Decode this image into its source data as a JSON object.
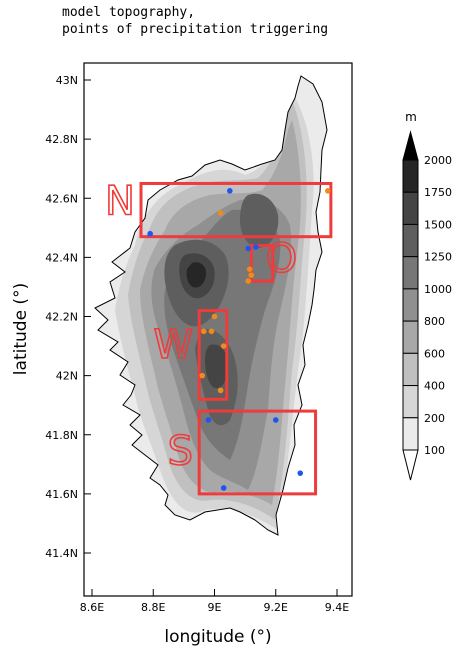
{
  "header": {
    "title_line1": "model topography,",
    "title_line2": "points of precipitation triggering"
  },
  "axes": {
    "xlabel": "longitude (°)",
    "ylabel": "latitude (°)",
    "lon_ticks": [
      {
        "value": 8.6,
        "label": "8.6E"
      },
      {
        "value": 8.8,
        "label": "8.8E"
      },
      {
        "value": 9.0,
        "label": "9E"
      },
      {
        "value": 9.2,
        "label": "9.2E"
      },
      {
        "value": 9.4,
        "label": "9.4E"
      }
    ],
    "lat_ticks": [
      {
        "value": 41.4,
        "label": "41.4N"
      },
      {
        "value": 41.6,
        "label": "41.6N"
      },
      {
        "value": 41.8,
        "label": "41.8N"
      },
      {
        "value": 42.0,
        "label": "42N"
      },
      {
        "value": 42.2,
        "label": "42.2N"
      },
      {
        "value": 42.4,
        "label": "42.4N"
      },
      {
        "value": 42.6,
        "label": "42.6N"
      },
      {
        "value": 42.8,
        "label": "42.8N"
      },
      {
        "value": 43.0,
        "label": "43N"
      }
    ],
    "lon_range": [
      8.5,
      9.6
    ],
    "lat_range": [
      41.25,
      43.1
    ]
  },
  "colorbar": {
    "unit": "m",
    "levels": [
      {
        "label": "100",
        "color": "#ffffff"
      },
      {
        "label": "200",
        "color": "#ebebeb"
      },
      {
        "label": "400",
        "color": "#d6d6d6"
      },
      {
        "label": "600",
        "color": "#c0c0c0"
      },
      {
        "label": "800",
        "color": "#a8a8a8"
      },
      {
        "label": "1000",
        "color": "#909090"
      },
      {
        "label": "1250",
        "color": "#777777"
      },
      {
        "label": "1500",
        "color": "#5e5e5e"
      },
      {
        "label": "1750",
        "color": "#444444"
      },
      {
        "label": "2000",
        "color": "#262626"
      }
    ],
    "over_color": "#000000"
  },
  "regions": [
    {
      "label": "N",
      "lon": [
        8.76,
        9.38
      ],
      "lat": [
        42.47,
        42.65
      ],
      "label_lon": 8.74,
      "label_lat": 42.545
    },
    {
      "label": "O",
      "lon": [
        9.12,
        9.19
      ],
      "lat": [
        42.32,
        42.44
      ],
      "label_lon": 9.27,
      "label_lat": 42.35
    },
    {
      "label": "W",
      "lon": [
        8.95,
        9.04
      ],
      "lat": [
        41.92,
        42.22
      ],
      "label_lon": 8.93,
      "label_lat": 42.06
    },
    {
      "label": "S",
      "lon": [
        8.95,
        9.33
      ],
      "lat": [
        41.6,
        41.88
      ],
      "label_lon": 8.93,
      "label_lat": 41.7
    }
  ],
  "points": [
    {
      "lon": 9.05,
      "lat": 42.625,
      "color": "blue"
    },
    {
      "lon": 8.79,
      "lat": 42.48,
      "color": "blue"
    },
    {
      "lon": 9.37,
      "lat": 42.625,
      "color": "orange"
    },
    {
      "lon": 9.02,
      "lat": 42.55,
      "color": "orange"
    },
    {
      "lon": 9.11,
      "lat": 42.43,
      "color": "blue"
    },
    {
      "lon": 9.135,
      "lat": 42.435,
      "color": "blue"
    },
    {
      "lon": 9.115,
      "lat": 42.36,
      "color": "orange"
    },
    {
      "lon": 9.12,
      "lat": 42.34,
      "color": "orange"
    },
    {
      "lon": 9.11,
      "lat": 42.32,
      "color": "orange"
    },
    {
      "lon": 9.0,
      "lat": 42.2,
      "color": "orange"
    },
    {
      "lon": 8.965,
      "lat": 42.15,
      "color": "orange"
    },
    {
      "lon": 8.99,
      "lat": 42.15,
      "color": "orange"
    },
    {
      "lon": 9.03,
      "lat": 42.1,
      "color": "orange"
    },
    {
      "lon": 8.96,
      "lat": 42.0,
      "color": "orange"
    },
    {
      "lon": 9.02,
      "lat": 41.95,
      "color": "orange"
    },
    {
      "lon": 8.98,
      "lat": 41.85,
      "color": "blue"
    },
    {
      "lon": 9.2,
      "lat": 41.85,
      "color": "blue"
    },
    {
      "lon": 9.28,
      "lat": 41.67,
      "color": "blue"
    },
    {
      "lon": 9.03,
      "lat": 41.62,
      "color": "blue"
    }
  ],
  "colors": {
    "region_box": "#ee3b3b",
    "point_blue": "#2255ee",
    "point_orange": "#f08a1c"
  }
}
